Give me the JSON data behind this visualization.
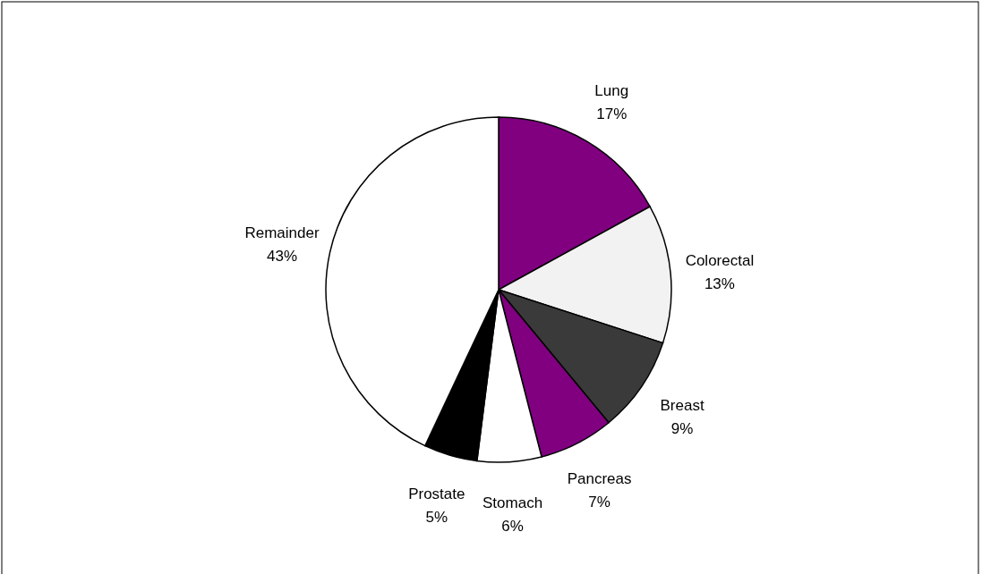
{
  "chart_data": {
    "type": "pie",
    "categories": [
      "Lung",
      "Colorectal",
      "Breast",
      "Pancreas",
      "Stomach",
      "Prostate",
      "Remainder"
    ],
    "values": [
      17,
      13,
      9,
      7,
      6,
      5,
      43
    ],
    "value_labels": [
      "17%",
      "13%",
      "9%",
      "7%",
      "6%",
      "5%",
      "43%"
    ],
    "colors": [
      "#800080",
      "#f2f2f2",
      "#3a3a3a",
      "#800080",
      "#ffffff",
      "#000000",
      "#ffffff"
    ]
  }
}
